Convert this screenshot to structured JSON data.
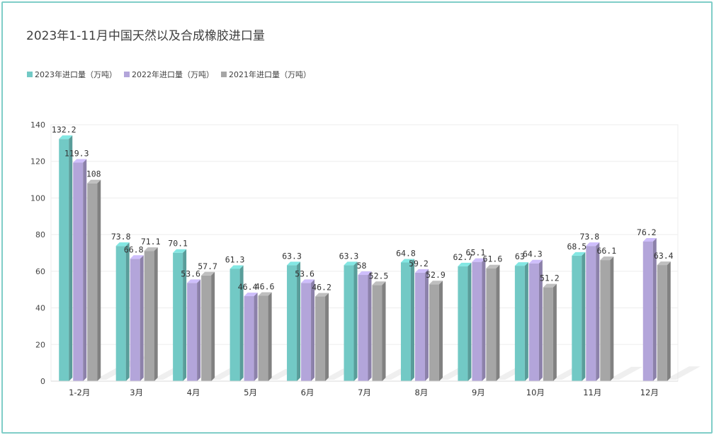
{
  "chart_data": {
    "type": "bar",
    "title": "2023年1-11月中国天然以及合成橡胶进口量",
    "categories": [
      "1-2月",
      "3月",
      "4月",
      "5月",
      "6月",
      "7月",
      "8月",
      "9月",
      "10月",
      "11月",
      "12月"
    ],
    "series": [
      {
        "name": "2023年进口量（万吨）",
        "color": "#72c9c5",
        "values": [
          132.2,
          73.8,
          70.1,
          61.3,
          63.3,
          63.3,
          64.8,
          62.7,
          63,
          68.5,
          null
        ]
      },
      {
        "name": "2022年进口量（万吨）",
        "color": "#b3a5da",
        "values": [
          119.3,
          66.8,
          53.6,
          46.4,
          53.6,
          58,
          59.2,
          65.1,
          64.3,
          73.8,
          76.2
        ]
      },
      {
        "name": "2021年进口量（万吨）",
        "color": "#a6a6a6",
        "values": [
          108,
          71.1,
          57.7,
          46.6,
          46.2,
          52.5,
          52.9,
          61.6,
          51.2,
          66.1,
          63.4
        ]
      }
    ],
    "data_labels": [
      [
        "132.2",
        "73.8",
        "70.1",
        "61.3",
        "63.3",
        "63.3",
        "64.8",
        "62.7",
        "63",
        "68.5",
        ""
      ],
      [
        "119.3",
        "66.8",
        "53.6",
        "46.4",
        "53.6",
        "58",
        "59.2",
        "65.1",
        "64.3",
        "73.8",
        "76.2"
      ],
      [
        "108",
        "71.1",
        "57.7",
        "46.6",
        "46.2",
        "52.5",
        "52.9",
        "61.6",
        "51.2",
        "66.1",
        "63.4"
      ]
    ],
    "ylim": [
      0,
      140
    ],
    "yticks": [
      0,
      20,
      40,
      60,
      80,
      100,
      120,
      140
    ],
    "ytick_labels": [
      "0",
      "20",
      "40",
      "60",
      "80",
      "100",
      "120",
      "140"
    ],
    "grid": true,
    "legend_position": "top-left"
  }
}
